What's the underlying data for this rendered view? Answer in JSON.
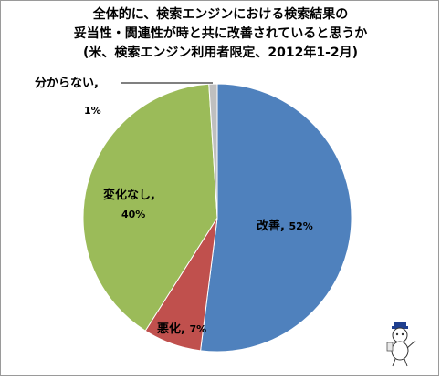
{
  "chart_data": {
    "type": "pie",
    "title_lines": [
      "全体的に、検索エンジンにおける検索結果の",
      "妥当性・関連性が時と共に改善されていると思うか",
      "(米、検索エンジン利用者限定、2012年1-2月)"
    ],
    "slices": [
      {
        "label": "改善",
        "value": 52,
        "value_text": "52%",
        "color": "#4f81bd"
      },
      {
        "label": "悪化",
        "value": 7,
        "value_text": "7%",
        "color": "#c0504d"
      },
      {
        "label": "変化なし",
        "value": 40,
        "value_text": "40%",
        "color": "#9bbb59"
      },
      {
        "label": "分からない",
        "value": 1,
        "value_text": "1%",
        "color": "#bfbfbf"
      }
    ],
    "start_angle": "12 o'clock",
    "direction": "clockwise"
  }
}
